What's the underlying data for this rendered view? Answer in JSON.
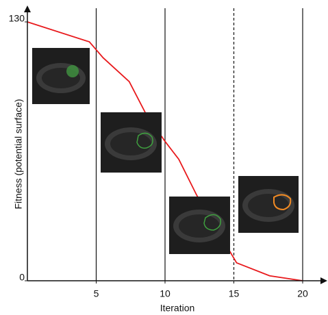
{
  "chart_data": {
    "type": "line",
    "x_label": "Iteration",
    "y_label": "Fitness (potential surface)",
    "x": [
      0,
      4.5,
      5.5,
      7.4,
      8.6,
      10,
      11,
      12.3,
      15.2,
      17.6,
      20
    ],
    "series": [
      {
        "color": "#e8191c",
        "values": [
          130,
          120,
          112,
          100,
          84,
          70,
          61,
          43,
          9,
          2.5,
          0
        ]
      }
    ],
    "xlim": [
      0,
      20
    ],
    "ylim": [
      0,
      130
    ],
    "xticks": [
      5,
      10,
      15,
      20
    ],
    "yticks": [
      0,
      130
    ],
    "vlines": [
      {
        "x": 5,
        "style": "solid"
      },
      {
        "x": 10,
        "style": "solid"
      },
      {
        "x": 15,
        "style": "dashed"
      },
      {
        "x": 20,
        "style": "solid"
      }
    ]
  }
}
